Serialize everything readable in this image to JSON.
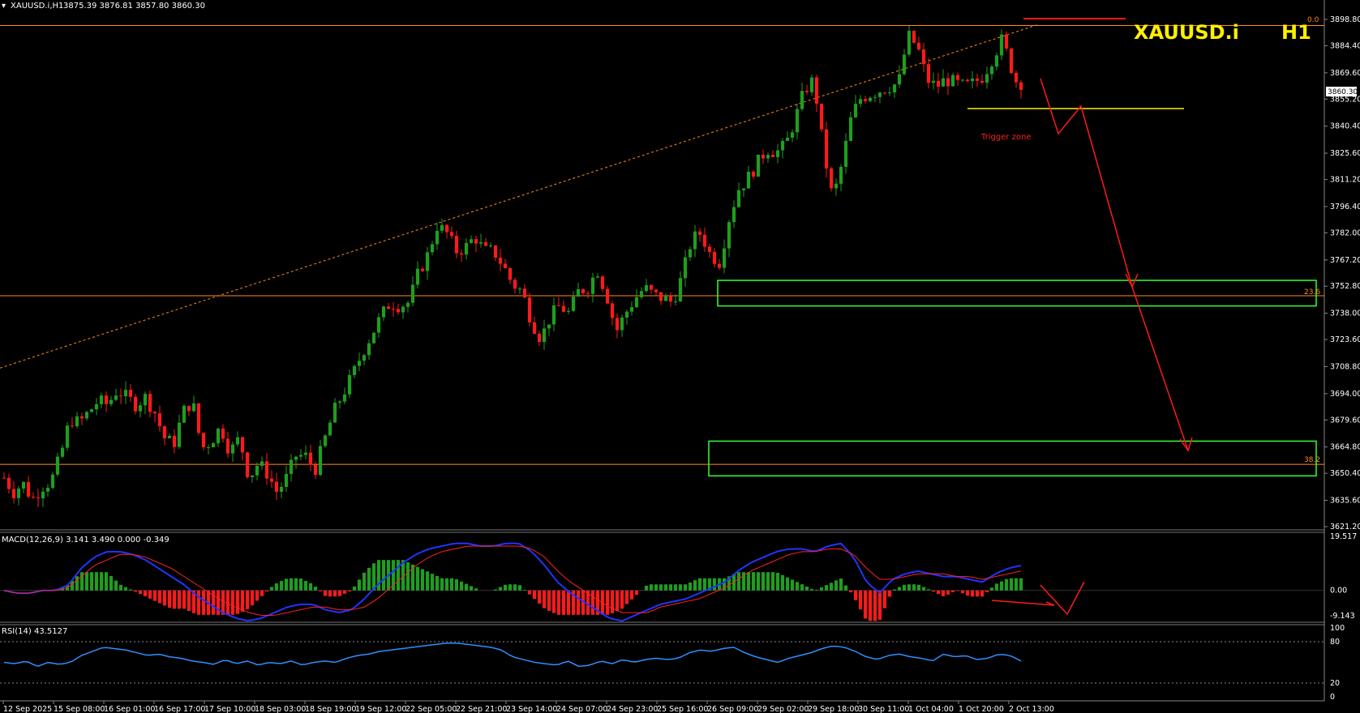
{
  "header": {
    "symbol_tf": "XAUUSD.i,H1",
    "ohlc": "3875.39 3876.81 3857.80 3860.30",
    "big_symbol": "XAUUSD.i",
    "big_tf": "H1"
  },
  "colors": {
    "background": "#000000",
    "bull": "#1f9e1f",
    "bear": "#ff1a1a",
    "fib": "#ff8c1a",
    "zone": "#33ff33",
    "trigger": "#ffee00",
    "arrow": "#ff1a1a",
    "macd_line": "#2233ff",
    "signal_line": "#ff2222",
    "rsi_line": "#2f8fff",
    "title": "#ffee00"
  },
  "annotations": {
    "trigger_zone": "Trigger zone",
    "fib_0": "0.0",
    "fib_236": "23.6",
    "fib_382": "38.2",
    "current_price": "3860.30"
  },
  "chart_data": [
    {
      "type": "candlestick",
      "symbol": "XAUUSD.i",
      "timeframe": "H1",
      "ylim": [
        3621.2,
        3898.8
      ],
      "yticks": [
        "3898.80",
        "3884.40",
        "3869.60",
        "3855.20",
        "3840.40",
        "3825.60",
        "3811.20",
        "3796.40",
        "3782.00",
        "3767.20",
        "3752.80",
        "3738.00",
        "3723.60",
        "3708.80",
        "3694.00",
        "3679.60",
        "3664.80",
        "3650.40",
        "3635.60",
        "3621.20"
      ],
      "xticks": [
        "12 Sep 2025",
        "15 Sep 08:00",
        "16 Sep 01:00",
        "16 Sep 17:00",
        "17 Sep 10:00",
        "18 Sep 03:00",
        "18 Sep 19:00",
        "19 Sep 12:00",
        "22 Sep 05:00",
        "22 Sep 21:00",
        "23 Sep 14:00",
        "24 Sep 07:00",
        "24 Sep 23:00",
        "25 Sep 16:00",
        "26 Sep 09:00",
        "29 Sep 02:00",
        "29 Sep 18:00",
        "30 Sep 11:00",
        "1 Oct 04:00",
        "1 Oct 20:00",
        "2 Oct 13:00"
      ],
      "close_path": [
        3648,
        3640,
        3645,
        3636,
        3643,
        3646,
        3660,
        3680,
        3678,
        3684,
        3690,
        3688,
        3696,
        3692,
        3688,
        3692,
        3684,
        3670,
        3666,
        3684,
        3690,
        3664,
        3668,
        3676,
        3662,
        3670,
        3648,
        3656,
        3650,
        3640,
        3648,
        3660,
        3660,
        3652,
        3668,
        3684,
        3694,
        3704,
        3716,
        3726,
        3736,
        3744,
        3742,
        3744,
        3760,
        3770,
        3786,
        3782,
        3772,
        3774,
        3780,
        3772,
        3772,
        3764,
        3754,
        3750,
        3734,
        3724,
        3736,
        3742,
        3738,
        3750,
        3752,
        3762,
        3748,
        3728,
        3738,
        3746,
        3752,
        3748,
        3746,
        3744,
        3758,
        3778,
        3782,
        3770,
        3766,
        3790,
        3806,
        3812,
        3820,
        3828,
        3826,
        3830,
        3844,
        3860,
        3866,
        3828,
        3800,
        3820,
        3846,
        3856,
        3858,
        3860,
        3862,
        3864,
        3890,
        3884,
        3866,
        3862,
        3866,
        3864,
        3862,
        3864,
        3868,
        3878,
        3888,
        3872,
        3858
      ],
      "fib_levels": [
        {
          "label": "0.0",
          "price": 3895.5
        },
        {
          "label": "23.6",
          "price": 3747.6
        },
        {
          "label": "38.2",
          "price": 3655.3
        }
      ],
      "trendline": {
        "from_price": 3708,
        "to_price": 3896
      },
      "zones": [
        {
          "top": 3756,
          "bottom": 3742
        },
        {
          "top": 3668,
          "bottom": 3649
        }
      ],
      "trigger_level": 3850,
      "last_price": 3860.3
    },
    {
      "type": "macd",
      "label": "MACD(12,26,9) 3.141 3.490 0.000 -0.349",
      "yticks": [
        "19.517",
        "0.00",
        "-9.143"
      ],
      "ylim": [
        -9.143,
        19.517
      ],
      "main_path": [
        0,
        -1,
        -1,
        0,
        0,
        2,
        8,
        12,
        14,
        14,
        13,
        11,
        8,
        5,
        2,
        -2,
        -5,
        -8,
        -10,
        -11,
        -10,
        -8,
        -6,
        -5,
        -5,
        -7,
        -8,
        -7,
        -3,
        2,
        6,
        10,
        13,
        15,
        16,
        17,
        17,
        16,
        16,
        17,
        17,
        14,
        9,
        3,
        -1,
        -4,
        -7,
        -10,
        -11,
        -9,
        -7,
        -5,
        -4,
        -3,
        -1,
        1,
        3,
        7,
        10,
        12,
        14,
        15,
        15,
        14,
        16,
        17,
        12,
        3,
        -1,
        4,
        6,
        7,
        6,
        5,
        5,
        4,
        3,
        6,
        8,
        9
      ],
      "signal_path": [
        0,
        -1,
        -1,
        0,
        0,
        1,
        5,
        9,
        11,
        13,
        13,
        12,
        10,
        8,
        5,
        2,
        -1,
        -4,
        -6,
        -8,
        -9,
        -9,
        -8,
        -7,
        -6,
        -6,
        -7,
        -7,
        -6,
        -3,
        1,
        5,
        9,
        12,
        14,
        15,
        16,
        16,
        16,
        16,
        16,
        15,
        12,
        7,
        3,
        0,
        -3,
        -6,
        -8,
        -8,
        -8,
        -6,
        -5,
        -4,
        -3,
        -1,
        1,
        4,
        7,
        9,
        11,
        13,
        14,
        14,
        15,
        15,
        13,
        8,
        4,
        4,
        5,
        6,
        6,
        6,
        5,
        5,
        4,
        5,
        6,
        7
      ]
    },
    {
      "type": "rsi",
      "label": "RSI(14) 43.5127",
      "yticks": [
        "100",
        "80",
        "20",
        "0"
      ],
      "levels": [
        80,
        20
      ],
      "path": [
        50,
        48,
        52,
        44,
        50,
        47,
        50,
        60,
        66,
        72,
        70,
        68,
        64,
        60,
        62,
        58,
        56,
        52,
        50,
        47,
        54,
        48,
        52,
        46,
        50,
        48,
        52,
        46,
        50,
        52,
        50,
        56,
        60,
        62,
        66,
        68,
        70,
        72,
        74,
        76,
        78,
        78,
        76,
        74,
        72,
        68,
        58,
        54,
        50,
        48,
        46,
        52,
        44,
        46,
        52,
        48,
        54,
        50,
        54,
        56,
        54,
        56,
        64,
        68,
        66,
        70,
        72,
        64,
        58,
        54,
        50,
        56,
        60,
        64,
        70,
        74,
        72,
        66,
        58,
        54,
        60,
        62,
        58,
        56,
        52,
        62,
        58,
        60,
        54,
        56,
        62,
        60,
        52
      ]
    }
  ]
}
